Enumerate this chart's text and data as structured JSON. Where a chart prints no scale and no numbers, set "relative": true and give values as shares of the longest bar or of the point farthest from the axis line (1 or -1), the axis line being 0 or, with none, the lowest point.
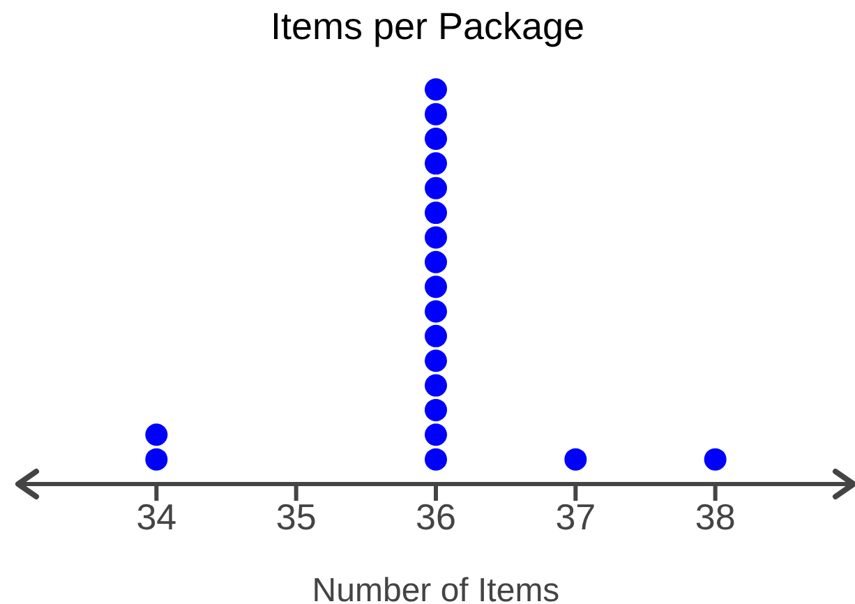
{
  "chart_data": {
    "type": "scatter",
    "title": "Items per Package",
    "xlabel": "Number of Items",
    "relative": true,
    "x": [
      34,
      34,
      36,
      36,
      36,
      36,
      36,
      36,
      36,
      36,
      36,
      36,
      36,
      36,
      36,
      36,
      36,
      36,
      37,
      38
    ],
    "values": [
      0.0625,
      0.125,
      0.0625,
      0.125,
      0.1875,
      0.25,
      0.3125,
      0.375,
      0.4375,
      0.5,
      0.5625,
      0.625,
      0.6875,
      0.75,
      0.8125,
      0.875,
      0.9375,
      1,
      0.0625,
      0.0625
    ],
    "color": "#0000ff",
    "marker": "circle",
    "xlim": [
      33,
      39
    ],
    "xticks": [
      34,
      35,
      36,
      37,
      38
    ],
    "tick_labels": "x",
    "grid": false
  }
}
